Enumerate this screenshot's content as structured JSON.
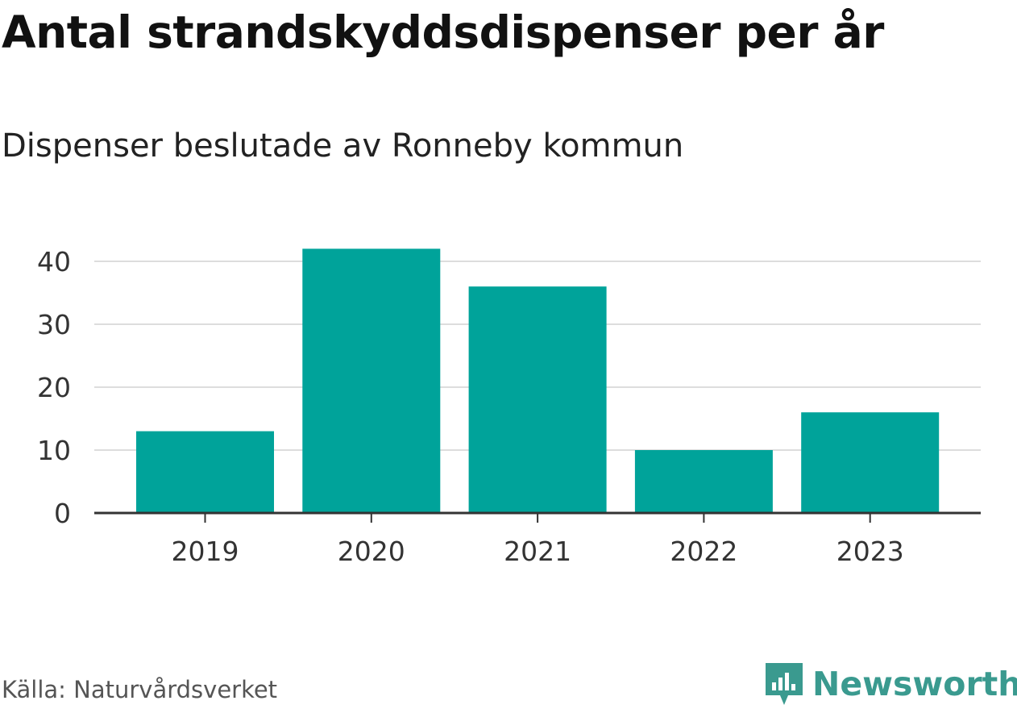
{
  "title": "Antal strandskyddsdispenser per år",
  "subtitle": "Dispenser beslutade av Ronneby kommun",
  "source": "Källa: Naturvårdsverket",
  "brand": {
    "name": "Newsworthy",
    "icon": "newsworthy-logo-icon",
    "color": "#3a9a8f"
  },
  "colors": {
    "bar": "#00a39a",
    "grid": "#dddddd",
    "axis": "#333333"
  },
  "chart_data": {
    "type": "bar",
    "title": "Antal strandskyddsdispenser per år",
    "subtitle": "Dispenser beslutade av Ronneby kommun",
    "categories": [
      "2019",
      "2020",
      "2021",
      "2022",
      "2023"
    ],
    "values": [
      13,
      42,
      36,
      10,
      16
    ],
    "xlabel": "",
    "ylabel": "",
    "ylim": [
      0,
      43
    ],
    "yticks": [
      0,
      10,
      20,
      30,
      40
    ],
    "grid": true
  }
}
